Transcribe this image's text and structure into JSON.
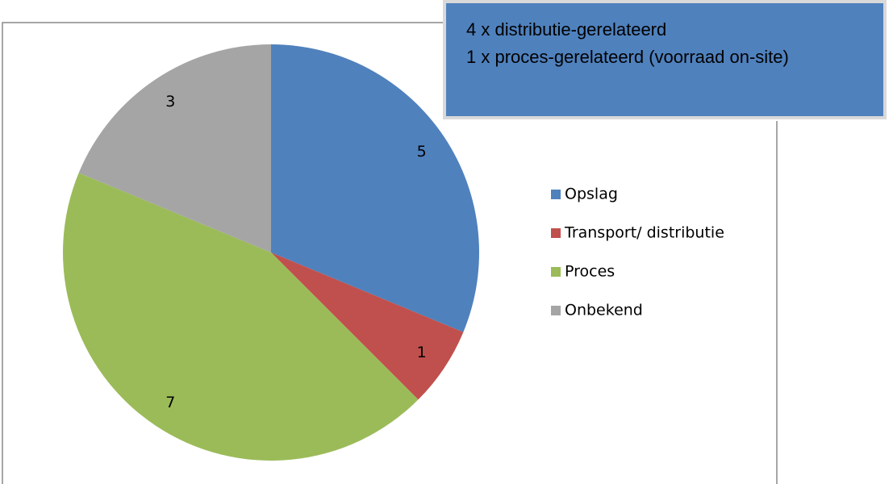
{
  "chart_data": {
    "type": "pie",
    "categories": [
      "Opslag",
      "Transport/ distributie",
      "Proces",
      "Onbekend"
    ],
    "values": [
      5,
      1,
      7,
      3
    ],
    "colors": [
      "#4f81bd",
      "#c0504d",
      "#9bbb59",
      "#a5a5a5"
    ],
    "legend": "right",
    "annotation": [
      "4 x distributie-gerelateerd",
      "1 x proces-gerelateerd (voorraad on-site)"
    ]
  }
}
